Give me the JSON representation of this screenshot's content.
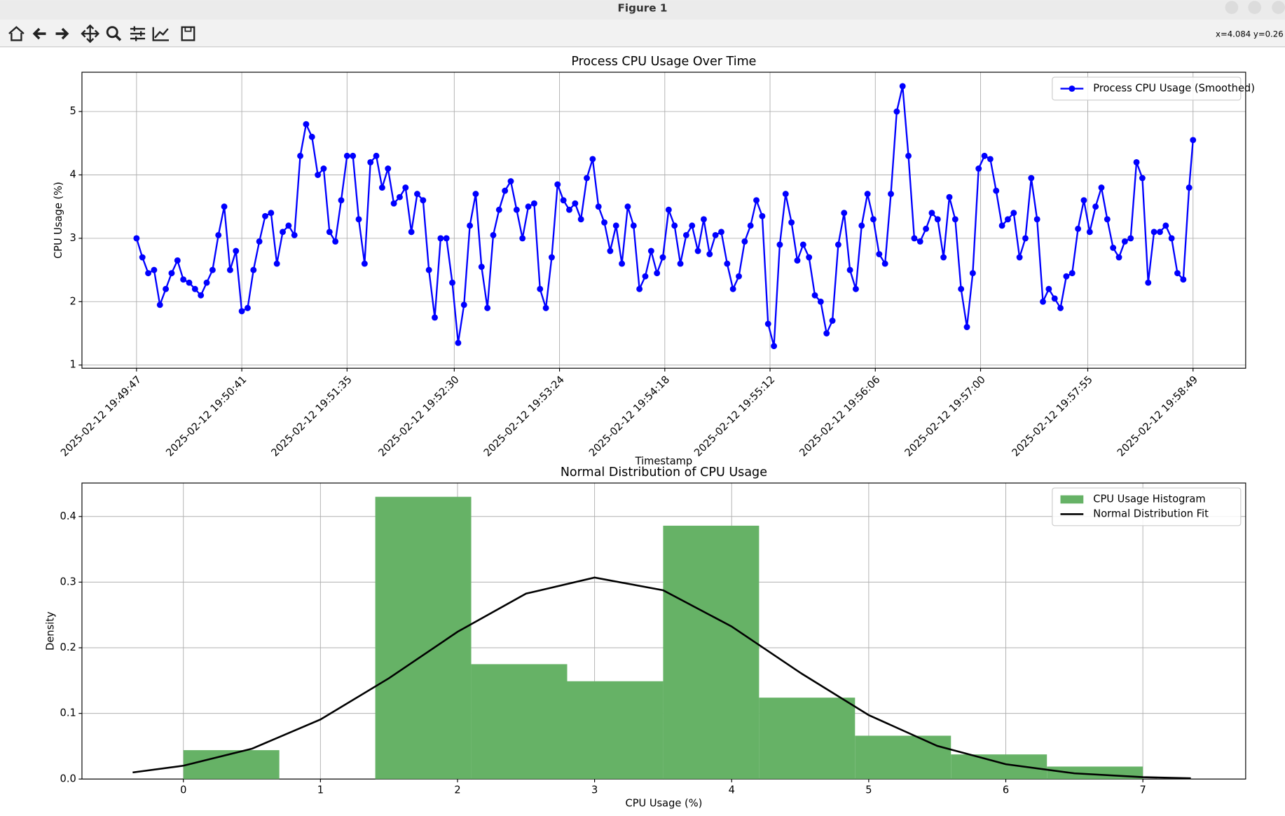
{
  "window": {
    "title": "Figure 1",
    "coordinates": "x=4.084 y=0.26"
  },
  "chart_data": [
    {
      "type": "line",
      "title": "Process CPU Usage Over Time",
      "xlabel": "Timestamp",
      "ylabel": "CPU Usage (%)",
      "x": [
        "2025-02-12 19:49:47",
        "2025-02-12 19:49:50",
        "2025-02-12 19:49:53",
        "2025-02-12 19:49:56",
        "2025-02-12 19:49:59",
        "2025-02-12 19:50:02",
        "2025-02-12 19:50:05",
        "2025-02-12 19:50:08",
        "2025-02-12 19:50:11",
        "2025-02-12 19:50:14",
        "2025-02-12 19:50:17",
        "2025-02-12 19:50:20",
        "2025-02-12 19:50:23",
        "2025-02-12 19:50:26",
        "2025-02-12 19:50:29",
        "2025-02-12 19:50:32",
        "2025-02-12 19:50:35",
        "2025-02-12 19:50:38",
        "2025-02-12 19:50:41",
        "2025-02-12 19:50:44",
        "2025-02-12 19:50:47",
        "2025-02-12 19:50:50",
        "2025-02-12 19:50:53",
        "2025-02-12 19:50:56",
        "2025-02-12 19:50:59",
        "2025-02-12 19:51:02",
        "2025-02-12 19:51:05",
        "2025-02-12 19:51:08",
        "2025-02-12 19:51:11",
        "2025-02-12 19:51:14",
        "2025-02-12 19:51:17",
        "2025-02-12 19:51:20",
        "2025-02-12 19:51:23",
        "2025-02-12 19:51:26",
        "2025-02-12 19:51:29",
        "2025-02-12 19:51:32",
        "2025-02-12 19:51:35",
        "2025-02-12 19:51:38",
        "2025-02-12 19:51:41",
        "2025-02-12 19:51:44",
        "2025-02-12 19:51:47",
        "2025-02-12 19:51:50",
        "2025-02-12 19:51:53",
        "2025-02-12 19:51:56",
        "2025-02-12 19:51:59",
        "2025-02-12 19:52:02",
        "2025-02-12 19:52:05",
        "2025-02-12 19:52:08",
        "2025-02-12 19:52:11",
        "2025-02-12 19:52:14",
        "2025-02-12 19:52:17",
        "2025-02-12 19:52:20",
        "2025-02-12 19:52:23",
        "2025-02-12 19:52:26",
        "2025-02-12 19:52:29",
        "2025-02-12 19:52:32",
        "2025-02-12 19:52:35",
        "2025-02-12 19:52:38",
        "2025-02-12 19:52:41",
        "2025-02-12 19:52:44",
        "2025-02-12 19:52:47",
        "2025-02-12 19:52:50",
        "2025-02-12 19:52:53",
        "2025-02-12 19:52:56",
        "2025-02-12 19:52:59",
        "2025-02-12 19:53:02",
        "2025-02-12 19:53:05",
        "2025-02-12 19:53:08",
        "2025-02-12 19:53:11",
        "2025-02-12 19:53:14",
        "2025-02-12 19:53:17",
        "2025-02-12 19:53:20",
        "2025-02-12 19:53:23",
        "2025-02-12 19:53:26",
        "2025-02-12 19:53:29",
        "2025-02-12 19:53:32",
        "2025-02-12 19:53:35",
        "2025-02-12 19:53:38",
        "2025-02-12 19:53:41",
        "2025-02-12 19:53:44",
        "2025-02-12 19:53:47",
        "2025-02-12 19:53:50",
        "2025-02-12 19:53:53",
        "2025-02-12 19:53:56",
        "2025-02-12 19:53:59",
        "2025-02-12 19:54:02",
        "2025-02-12 19:54:05",
        "2025-02-12 19:54:08",
        "2025-02-12 19:54:11",
        "2025-02-12 19:54:14",
        "2025-02-12 19:54:17",
        "2025-02-12 19:54:20",
        "2025-02-12 19:54:23",
        "2025-02-12 19:54:26",
        "2025-02-12 19:54:29",
        "2025-02-12 19:54:32",
        "2025-02-12 19:54:35",
        "2025-02-12 19:54:38",
        "2025-02-12 19:54:41",
        "2025-02-12 19:54:44",
        "2025-02-12 19:54:47",
        "2025-02-12 19:54:50",
        "2025-02-12 19:54:53",
        "2025-02-12 19:54:56",
        "2025-02-12 19:54:59",
        "2025-02-12 19:55:02",
        "2025-02-12 19:55:05",
        "2025-02-12 19:55:08",
        "2025-02-12 19:55:11",
        "2025-02-12 19:55:14",
        "2025-02-12 19:55:17",
        "2025-02-12 19:55:20",
        "2025-02-12 19:55:23",
        "2025-02-12 19:55:26",
        "2025-02-12 19:55:29",
        "2025-02-12 19:55:32",
        "2025-02-12 19:55:35",
        "2025-02-12 19:55:38",
        "2025-02-12 19:55:41",
        "2025-02-12 19:55:44",
        "2025-02-12 19:55:47",
        "2025-02-12 19:55:50",
        "2025-02-12 19:55:53",
        "2025-02-12 19:55:56",
        "2025-02-12 19:55:59",
        "2025-02-12 19:56:02",
        "2025-02-12 19:56:05",
        "2025-02-12 19:56:08",
        "2025-02-12 19:56:11",
        "2025-02-12 19:56:14",
        "2025-02-12 19:56:17",
        "2025-02-12 19:56:20",
        "2025-02-12 19:56:23",
        "2025-02-12 19:56:26",
        "2025-02-12 19:56:29",
        "2025-02-12 19:56:32",
        "2025-02-12 19:56:35",
        "2025-02-12 19:56:38",
        "2025-02-12 19:56:41",
        "2025-02-12 19:56:44",
        "2025-02-12 19:56:47",
        "2025-02-12 19:56:50",
        "2025-02-12 19:56:53",
        "2025-02-12 19:56:56",
        "2025-02-12 19:56:59",
        "2025-02-12 19:57:02",
        "2025-02-12 19:57:05",
        "2025-02-12 19:57:08",
        "2025-02-12 19:57:11",
        "2025-02-12 19:57:14",
        "2025-02-12 19:57:17",
        "2025-02-12 19:57:20",
        "2025-02-12 19:57:23",
        "2025-02-12 19:57:26",
        "2025-02-12 19:57:29",
        "2025-02-12 19:57:32",
        "2025-02-12 19:57:35",
        "2025-02-12 19:57:38",
        "2025-02-12 19:57:41",
        "2025-02-12 19:57:44",
        "2025-02-12 19:57:47",
        "2025-02-12 19:57:50",
        "2025-02-12 19:57:53",
        "2025-02-12 19:57:56",
        "2025-02-12 19:57:59",
        "2025-02-12 19:58:02",
        "2025-02-12 19:58:05",
        "2025-02-12 19:58:08",
        "2025-02-12 19:58:11",
        "2025-02-12 19:58:14",
        "2025-02-12 19:58:17",
        "2025-02-12 19:58:20",
        "2025-02-12 19:58:23",
        "2025-02-12 19:58:26",
        "2025-02-12 19:58:29",
        "2025-02-12 19:58:32",
        "2025-02-12 19:58:35",
        "2025-02-12 19:58:38",
        "2025-02-12 19:58:41",
        "2025-02-12 19:58:44",
        "2025-02-12 19:58:47",
        "2025-02-12 19:58:49"
      ],
      "series": [
        {
          "name": "Process CPU Usage (Smoothed)",
          "color": "#0000ff",
          "values": [
            3.0,
            2.7,
            2.45,
            2.5,
            1.95,
            2.2,
            2.45,
            2.65,
            2.35,
            2.3,
            2.2,
            2.1,
            2.3,
            2.5,
            3.05,
            3.5,
            2.5,
            2.8,
            1.85,
            1.9,
            2.5,
            2.95,
            3.35,
            3.4,
            2.6,
            3.1,
            3.2,
            3.05,
            4.3,
            4.8,
            4.6,
            4.0,
            4.1,
            3.1,
            2.95,
            3.6,
            4.3,
            4.3,
            3.3,
            2.6,
            4.2,
            4.3,
            3.8,
            4.1,
            3.55,
            3.65,
            3.8,
            3.1,
            3.7,
            3.6,
            2.5,
            1.75,
            3.0,
            3.0,
            2.3,
            1.35,
            1.95,
            3.2,
            3.7,
            2.55,
            1.9,
            3.05,
            3.45,
            3.75,
            3.9,
            3.45,
            3.0,
            3.5,
            3.55,
            2.2,
            1.9,
            2.7,
            3.85,
            3.6,
            3.45,
            3.55,
            3.3,
            3.95,
            4.25,
            3.5,
            3.25,
            2.8,
            3.2,
            2.6,
            3.5,
            3.2,
            2.2,
            2.4,
            2.8,
            2.45,
            2.7,
            3.45,
            3.2,
            2.6,
            3.05,
            3.2,
            2.8,
            3.3,
            2.75,
            3.05,
            3.1,
            2.6,
            2.2,
            2.4,
            2.95,
            3.2,
            3.6,
            3.35,
            1.65,
            1.3,
            2.9,
            3.7,
            3.25,
            2.65,
            2.9,
            2.7,
            2.1,
            2.0,
            1.5,
            1.7,
            2.9,
            3.4,
            2.5,
            2.2,
            3.2,
            3.7,
            3.3,
            2.75,
            2.6,
            3.7,
            5.0,
            5.4,
            4.3,
            3.0,
            2.95,
            3.15,
            3.4,
            3.3,
            2.7,
            3.65,
            3.3,
            2.2,
            1.6,
            2.45,
            4.1,
            4.3,
            4.25,
            3.75,
            3.2,
            3.3,
            3.4,
            2.7,
            3.0,
            3.95,
            3.3,
            2.0,
            2.2,
            2.05,
            1.9,
            2.4,
            2.45,
            3.15,
            3.6,
            3.1,
            3.5,
            3.8,
            3.3,
            2.85,
            2.7,
            2.95,
            3.0,
            4.2,
            3.95,
            2.3,
            3.1,
            3.1,
            3.2,
            3.0,
            2.45,
            2.35,
            3.8,
            4.55
          ]
        }
      ],
      "xlim": [
        "2025-02-12 19:49:19",
        "2025-02-12 19:59:16"
      ],
      "xticks": [
        "2025-02-12 19:49:47",
        "2025-02-12 19:50:41",
        "2025-02-12 19:51:35",
        "2025-02-12 19:52:30",
        "2025-02-12 19:53:24",
        "2025-02-12 19:54:18",
        "2025-02-12 19:55:12",
        "2025-02-12 19:56:06",
        "2025-02-12 19:57:00",
        "2025-02-12 19:57:55",
        "2025-02-12 19:58:49"
      ],
      "ylim": [
        0.95,
        5.62
      ],
      "yticks": [
        1,
        2,
        3,
        4,
        5
      ],
      "grid": true,
      "legend": "upper right"
    },
    {
      "type": "histogram",
      "title": "Normal Distribution of CPU Usage",
      "xlabel": "CPU Usage (%)",
      "ylabel": "Density",
      "name": "CPU Usage Histogram",
      "color": "#66b266",
      "bins": [
        0,
        0.7,
        1.4,
        2.1,
        2.8,
        3.5,
        4.2,
        4.9,
        5.6,
        6.3,
        7.0
      ],
      "values": [
        0.044,
        0,
        0.43,
        0.175,
        0.149,
        0.386,
        0.124,
        0.066,
        0.0375,
        0.019
      ],
      "fit": {
        "name": "Normal Distribution Fit",
        "color": "#000000",
        "x": [
          -0.37,
          0,
          0.5,
          1,
          1.5,
          2,
          2.5,
          3,
          3.5,
          4,
          4.5,
          5,
          5.5,
          6,
          6.5,
          7,
          7.35
        ],
        "values": [
          0.01,
          0.0203,
          0.0462,
          0.0907,
          0.1536,
          0.2243,
          0.2825,
          0.307,
          0.2876,
          0.2324,
          0.162,
          0.0974,
          0.0505,
          0.0226,
          0.0087,
          0.0029,
          0.0012
        ]
      },
      "xlim": [
        -0.74,
        7.75
      ],
      "xticks": [
        0,
        1,
        2,
        3,
        4,
        5,
        6,
        7
      ],
      "ylim": [
        0,
        0.451
      ],
      "yticks": [
        {
          "value": 0,
          "label": "0.0"
        },
        0.1,
        0.2,
        0.3,
        0.4
      ],
      "grid": true,
      "legend": "upper right"
    }
  ]
}
